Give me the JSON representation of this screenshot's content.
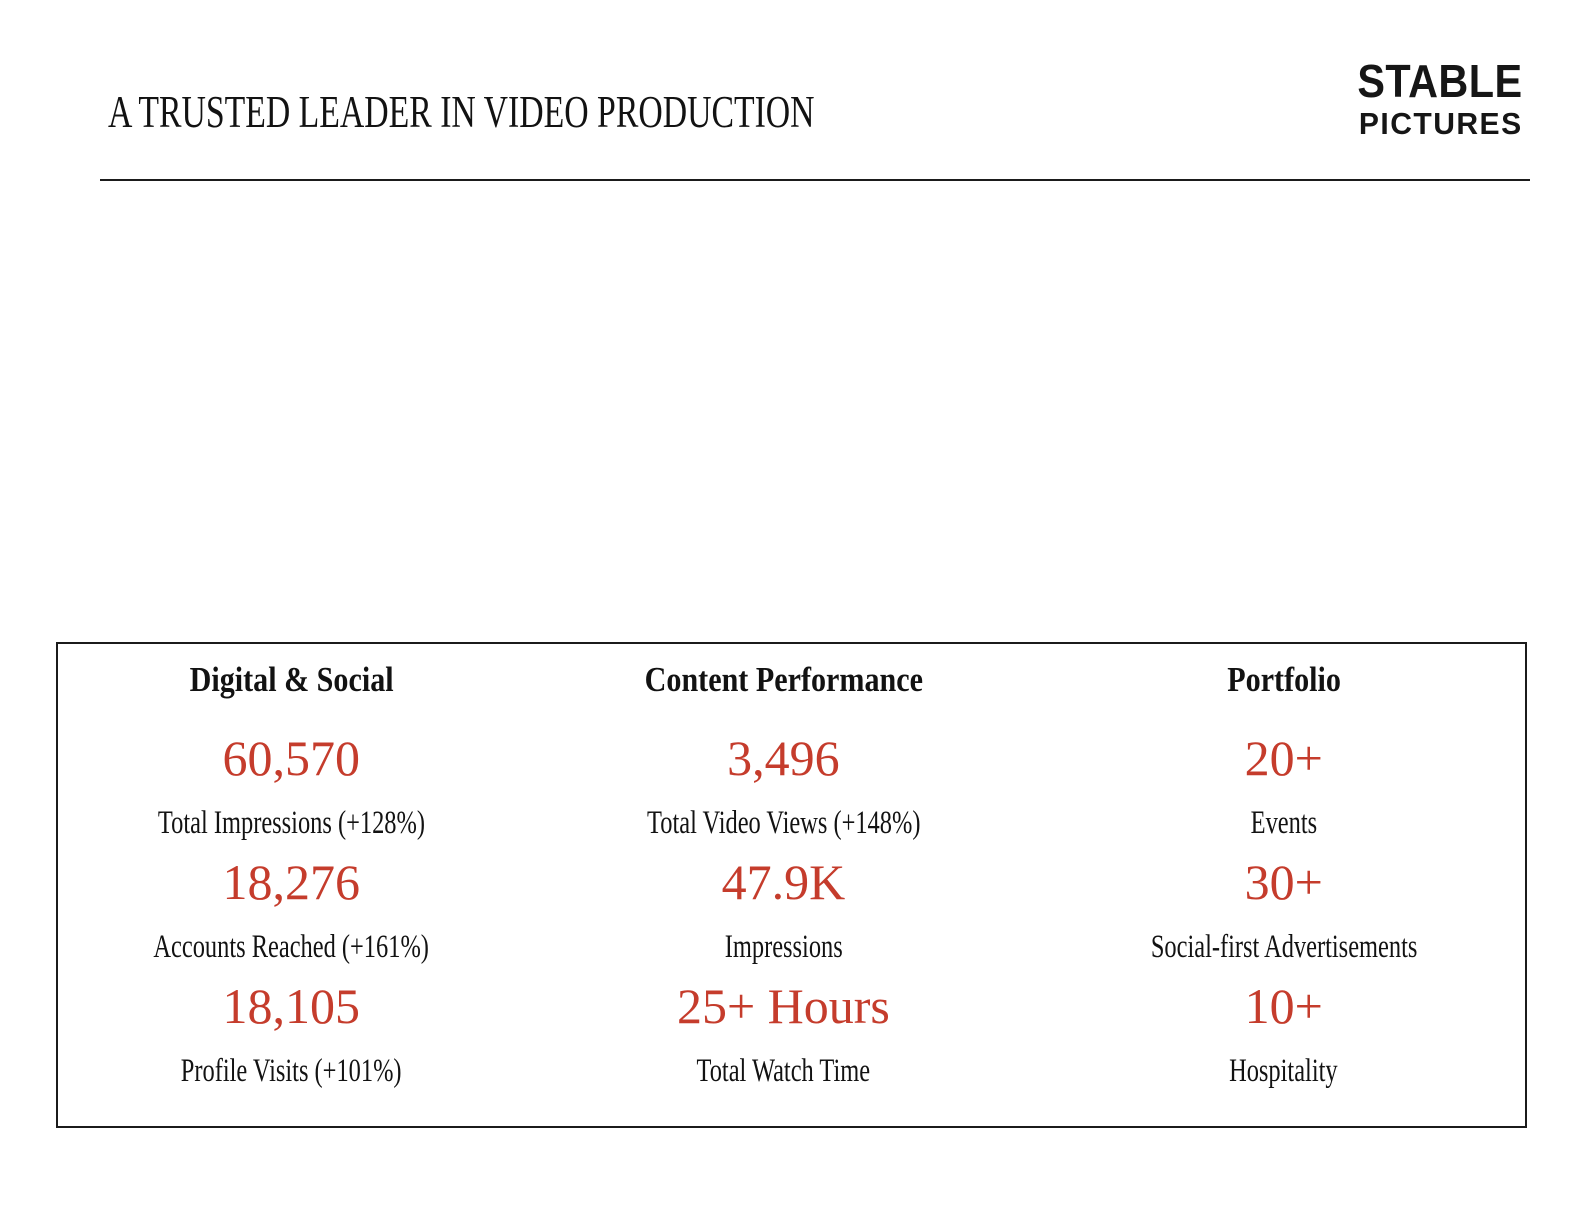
{
  "header": {
    "title": "A TRUSTED LEADER IN VIDEO PRODUCTION"
  },
  "brand": {
    "line1": "STABLE",
    "line2": "PICTURES"
  },
  "colors": {
    "accent_red": "#C53C2C",
    "text_black": "#121212",
    "line_black": "#1b1b1b"
  },
  "stats_panel": {
    "columns": [
      {
        "heading": "Digital & Social",
        "stats": [
          {
            "value": "60,570",
            "label": "Total Impressions (+128%)"
          },
          {
            "value": "18,276",
            "label": "Accounts Reached (+161%)"
          },
          {
            "value": "18,105",
            "label": "Profile Visits (+101%)"
          }
        ]
      },
      {
        "heading": "Content Performance",
        "stats": [
          {
            "value": "3,496",
            "label": "Total Video Views (+148%)"
          },
          {
            "value": "47.9K",
            "label": "Impressions"
          },
          {
            "value": "25+ Hours",
            "label": "Total Watch Time"
          }
        ]
      },
      {
        "heading": "Portfolio",
        "stats": [
          {
            "value": "20+",
            "label": "Events"
          },
          {
            "value": "30+",
            "label": "Social-first Advertisements"
          },
          {
            "value": "10+",
            "label": "Hospitality"
          }
        ]
      }
    ]
  }
}
